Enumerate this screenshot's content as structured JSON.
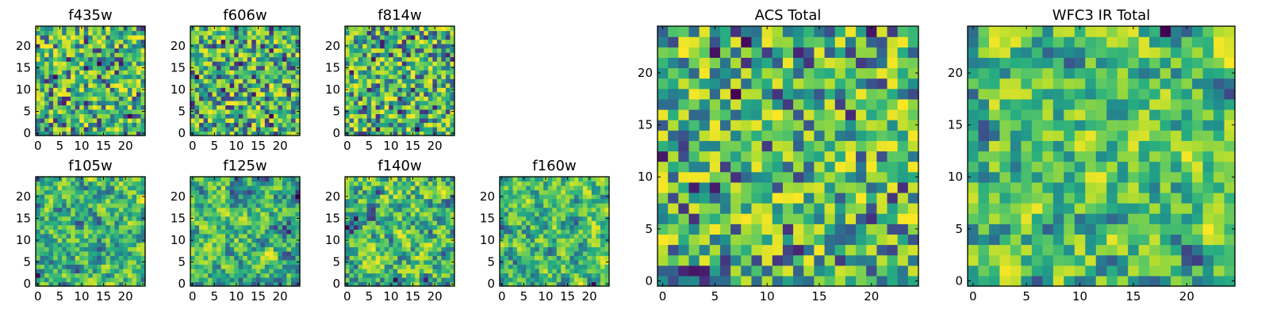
{
  "chart_data": [
    {
      "type": "heatmap",
      "title": "f435w",
      "xlim": [
        0,
        25
      ],
      "ylim": [
        0,
        25
      ],
      "xticks": [
        0,
        5,
        10,
        15,
        20
      ],
      "yticks": [
        0,
        5,
        10,
        15,
        20
      ],
      "grid_size": 25,
      "colormap": "viridis",
      "texture": "noise",
      "seed": 11
    },
    {
      "type": "heatmap",
      "title": "f606w",
      "xlim": [
        0,
        25
      ],
      "ylim": [
        0,
        25
      ],
      "xticks": [
        0,
        5,
        10,
        15,
        20
      ],
      "yticks": [
        0,
        5,
        10,
        15,
        20
      ],
      "grid_size": 25,
      "colormap": "viridis",
      "texture": "noise",
      "seed": 23
    },
    {
      "type": "heatmap",
      "title": "f814w",
      "xlim": [
        0,
        25
      ],
      "ylim": [
        0,
        25
      ],
      "xticks": [
        0,
        5,
        10,
        15,
        20
      ],
      "yticks": [
        0,
        5,
        10,
        15,
        20
      ],
      "grid_size": 25,
      "colormap": "viridis",
      "texture": "noise",
      "seed": 37
    },
    {
      "type": "heatmap",
      "title": "f105w",
      "xlim": [
        0,
        25
      ],
      "ylim": [
        0,
        25
      ],
      "xticks": [
        0,
        5,
        10,
        15,
        20
      ],
      "yticks": [
        0,
        5,
        10,
        15,
        20
      ],
      "grid_size": 25,
      "colormap": "viridis",
      "texture": "smooth",
      "seed": 41
    },
    {
      "type": "heatmap",
      "title": "f125w",
      "xlim": [
        0,
        25
      ],
      "ylim": [
        0,
        25
      ],
      "xticks": [
        0,
        5,
        10,
        15,
        20
      ],
      "yticks": [
        0,
        5,
        10,
        15,
        20
      ],
      "grid_size": 25,
      "colormap": "viridis",
      "texture": "smooth",
      "seed": 53
    },
    {
      "type": "heatmap",
      "title": "f140w",
      "xlim": [
        0,
        25
      ],
      "ylim": [
        0,
        25
      ],
      "xticks": [
        0,
        5,
        10,
        15,
        20
      ],
      "yticks": [
        0,
        5,
        10,
        15,
        20
      ],
      "grid_size": 25,
      "colormap": "viridis",
      "texture": "smooth",
      "seed": 67
    },
    {
      "type": "heatmap",
      "title": "f160w",
      "xlim": [
        0,
        25
      ],
      "ylim": [
        0,
        25
      ],
      "xticks": [
        0,
        5,
        10,
        15,
        20
      ],
      "yticks": [
        0,
        5,
        10,
        15,
        20
      ],
      "grid_size": 25,
      "colormap": "viridis",
      "texture": "smooth",
      "seed": 79
    },
    {
      "type": "heatmap",
      "title": "ACS Total",
      "xlim": [
        0,
        25
      ],
      "ylim": [
        0,
        25
      ],
      "xticks": [
        0,
        5,
        10,
        15,
        20
      ],
      "yticks": [
        0,
        5,
        10,
        15,
        20
      ],
      "grid_size": 25,
      "colormap": "viridis",
      "texture": "noise",
      "seed": 97
    },
    {
      "type": "heatmap",
      "title": "WFC3 IR Total",
      "xlim": [
        0,
        25
      ],
      "ylim": [
        0,
        25
      ],
      "xticks": [
        0,
        5,
        10,
        15,
        20
      ],
      "yticks": [
        0,
        5,
        10,
        15,
        20
      ],
      "grid_size": 25,
      "colormap": "viridis",
      "texture": "smooth",
      "seed": 113
    }
  ],
  "colors": {
    "low": "#440154",
    "mid": "#21918c",
    "high": "#fde725",
    "axis": "#000000"
  }
}
